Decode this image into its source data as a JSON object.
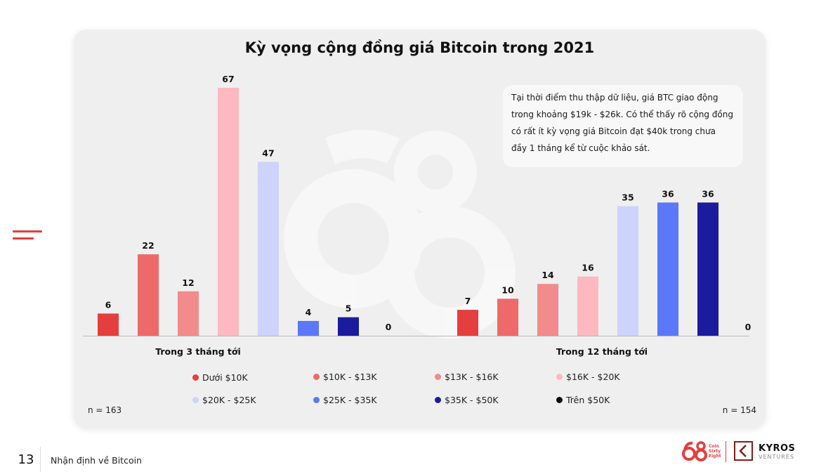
{
  "page": {
    "number": "13",
    "footer_text": "Nhận định về Bitcoin"
  },
  "brand": {
    "coin68_line1": "Coin",
    "coin68_line2": "Sixty",
    "coin68_line3": "Eight",
    "kyros_name": "KYROS",
    "kyros_sub": "VENTURES"
  },
  "callout": {
    "text": "Tại thời điểm thu thập dữ liệu, giá BTC giao động trong khoảng $19k - $26k. Có thể thấy rõ cộng đồng có rất ít kỳ vọng giá Bitcoin đạt $40k trong chưa đầy 1 tháng kể từ cuộc khảo sát."
  },
  "sample_left": "n = 163",
  "sample_right": "n = 154",
  "colors": {
    "card_bg": "#efefef",
    "accent_red": "#e53e3e"
  },
  "chart_data": {
    "type": "bar",
    "title": "Kỳ vọng cộng đồng giá Bitcoin trong 2021",
    "categories": [
      "Trong 3 tháng tới",
      "Trong 12 tháng tới"
    ],
    "series": [
      {
        "name": "Dưới $10K",
        "color": "#e53e3e",
        "values": [
          6,
          7
        ]
      },
      {
        "name": "$10K - $13K",
        "color": "#ee6a6a",
        "values": [
          22,
          10
        ]
      },
      {
        "name": "$13K - $16K",
        "color": "#f28b8b",
        "values": [
          12,
          14
        ]
      },
      {
        "name": "$16K - $20K",
        "color": "#fdb8c0",
        "values": [
          67,
          16
        ]
      },
      {
        "name": "$20K - $25K",
        "color": "#cdd3fb",
        "values": [
          47,
          35
        ]
      },
      {
        "name": "$25K - $35K",
        "color": "#5b78f8",
        "values": [
          4,
          36
        ]
      },
      {
        "name": "$35K - $50K",
        "color": "#1b1b9e",
        "values": [
          5,
          36
        ]
      },
      {
        "name": "Trên $50K",
        "color": "#0a0a0a",
        "values": [
          0,
          0
        ]
      }
    ],
    "ylim": [
      0,
      67
    ],
    "legend_position": "bottom",
    "grid": false
  }
}
